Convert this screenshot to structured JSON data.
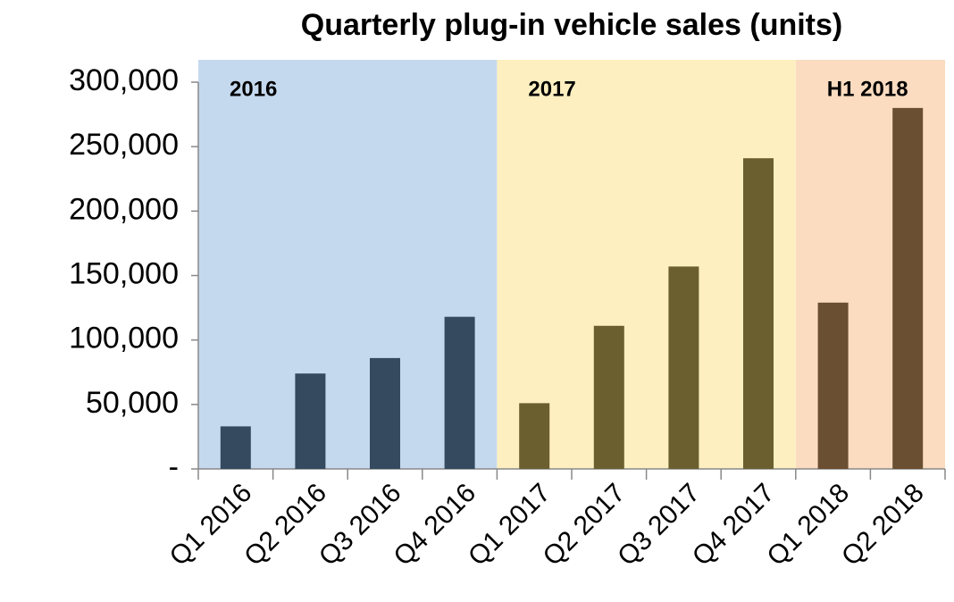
{
  "chart_data": {
    "type": "bar",
    "title": "Quarterly plug-in vehicle sales (units)",
    "categories": [
      "Q1 2016",
      "Q2 2016",
      "Q3 2016",
      "Q4 2016",
      "Q1 2017",
      "Q2 2017",
      "Q3 2017",
      "Q4 2017",
      "Q1 2018",
      "Q2 2018"
    ],
    "series": [
      {
        "name": "2016",
        "color": "#354a5f",
        "background": "#c5d9ee",
        "values": [
          33000,
          74000,
          86000,
          118000,
          null,
          null,
          null,
          null,
          null,
          null
        ]
      },
      {
        "name": "2017",
        "color": "#6b5f30",
        "background": "#fdefc0",
        "values": [
          null,
          null,
          null,
          null,
          51000,
          111000,
          157000,
          241000,
          null,
          null
        ]
      },
      {
        "name": "H1 2018",
        "color": "#6b4f33",
        "background": "#fbdcc0",
        "values": [
          null,
          null,
          null,
          null,
          null,
          null,
          null,
          null,
          129000,
          280000
        ]
      }
    ],
    "ylim": [
      0,
      300000
    ],
    "yticks": [
      {
        "value": 0,
        "label": "-"
      },
      {
        "value": 50000,
        "label": "50,000"
      },
      {
        "value": 100000,
        "label": "100,000"
      },
      {
        "value": 150000,
        "label": "150,000"
      },
      {
        "value": 200000,
        "label": "200,000"
      },
      {
        "value": 250000,
        "label": "250,000"
      },
      {
        "value": 300000,
        "label": "300,000"
      }
    ],
    "grid": false
  }
}
